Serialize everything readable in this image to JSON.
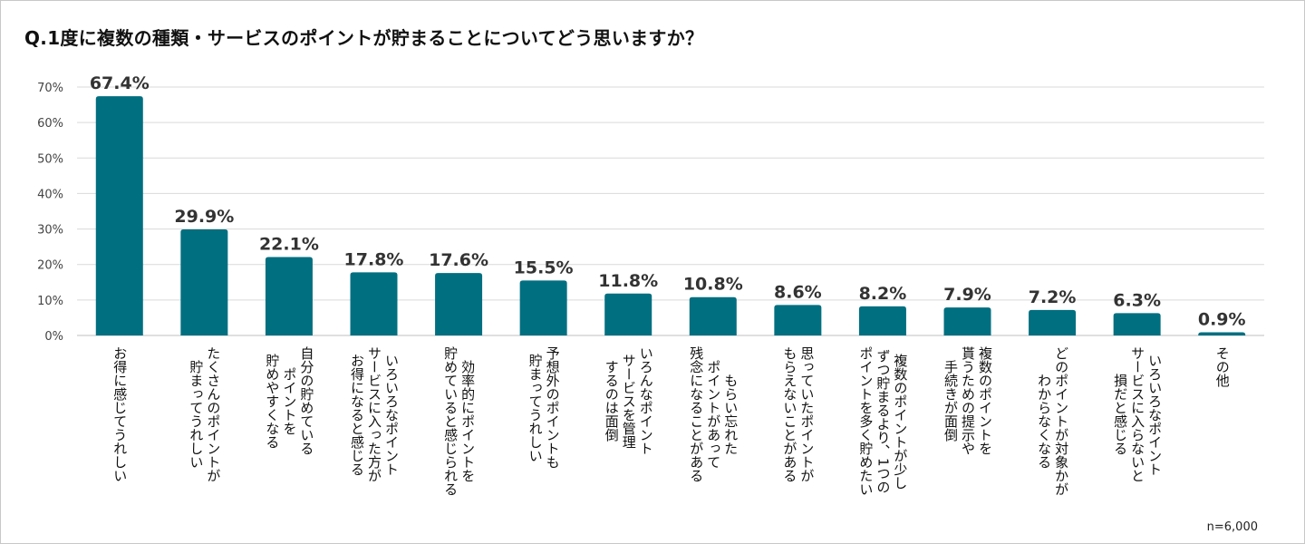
{
  "chart_data": {
    "type": "bar",
    "title": "Q.1度に複数の種類・サービスのポイントが貯まることについてどう思いますか？",
    "categories": [
      "お得に感じてうれしい",
      "たくさんのポイントが\n貯まってうれしい",
      "自分の貯めている\nポイントを\n貯めやすくなる",
      "いろいろなポイント\nサービスに入った方が\nお得になると感じる",
      "効率的にポイントを\n貯めていると感じられる",
      "予想外のポイントも\n貯まってうれしい",
      "いろんなポイント\nサービスを管理\nするのは面倒",
      "もらい忘れた\nポイントがあって\n残念になることがある",
      "思っていたポイントが\nもらえないことがある",
      "複数のポイントが少し\nずつ貯まるより、1つの\nポイントを多く貯めたい",
      "複数のポイントを\n貰うための提示や\n手続きが面倒",
      "どのポイントが対象かが\nわからなくなる",
      "いろいろなポイント\nサービスに入らないと\n損だと感じる",
      "その他"
    ],
    "values": [
      67.4,
      29.9,
      22.1,
      17.8,
      17.6,
      15.5,
      11.8,
      10.8,
      8.6,
      8.2,
      7.9,
      7.2,
      6.3,
      0.9
    ],
    "data_labels": [
      "67.4%",
      "29.9%",
      "22.1%",
      "17.8%",
      "17.6%",
      "15.5%",
      "11.8%",
      "10.8%",
      "8.6%",
      "8.2%",
      "7.9%",
      "7.2%",
      "6.3%",
      "0.9%"
    ],
    "yticks": [
      "0%",
      "10%",
      "20%",
      "30%",
      "40%",
      "50%",
      "60%",
      "70%"
    ],
    "ylim": [
      0,
      70
    ],
    "grid": true,
    "bar_color": "#006f80",
    "note": "n=6,000"
  }
}
